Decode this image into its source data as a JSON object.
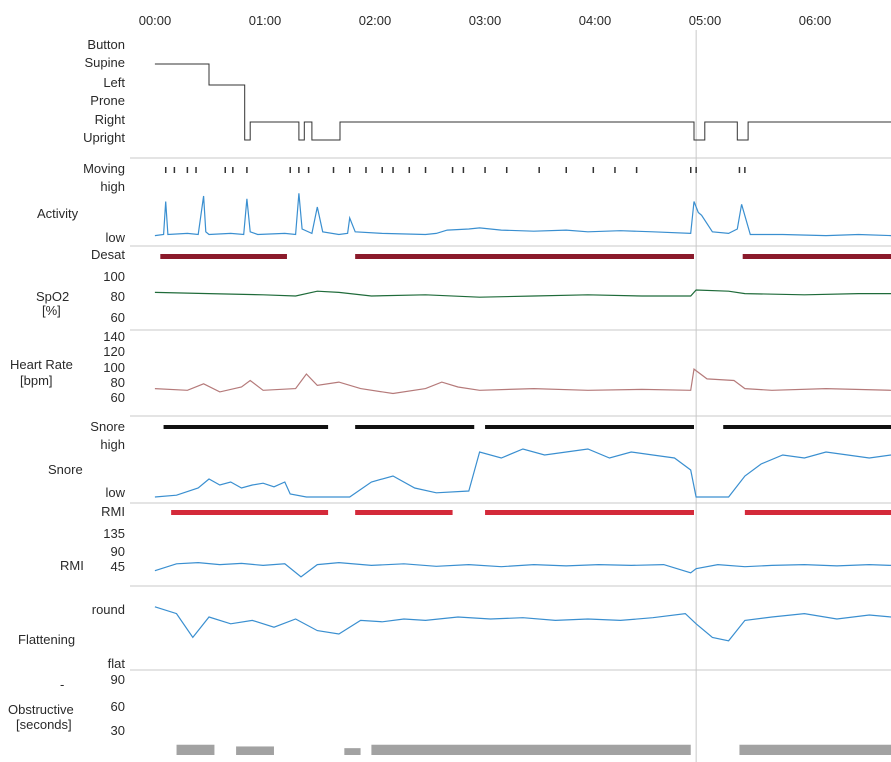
{
  "time_axis": {
    "ticks": [
      "00:00",
      "01:00",
      "02:00",
      "03:00",
      "04:00",
      "05:00",
      "06:00"
    ]
  },
  "panels": {
    "position": {
      "labels": [
        "Button",
        "Supine",
        "Left",
        "Prone",
        "Right",
        "Upright"
      ]
    },
    "moving": {
      "label": "Moving"
    },
    "activity": {
      "title": "Activity",
      "high": "high",
      "low": "low"
    },
    "desat": {
      "label": "Desat"
    },
    "spo2": {
      "title": "SpO2",
      "unit": "[%]",
      "ticks": [
        "100",
        "80",
        "60"
      ]
    },
    "heart_rate": {
      "title": "Heart Rate",
      "unit": "[bpm]",
      "ticks": [
        "140",
        "120",
        "100",
        "80",
        "60"
      ]
    },
    "snore_events": {
      "label": "Snore"
    },
    "snore": {
      "title": "Snore",
      "high": "high",
      "low": "low"
    },
    "rmi_events": {
      "label": "RMI"
    },
    "rmi": {
      "title": "RMI",
      "ticks": [
        "135",
        "90",
        "45"
      ]
    },
    "flattening": {
      "title": "Flattening",
      "high": "round",
      "low": "flat"
    },
    "obstructive": {
      "title": "Obstructive",
      "unit": "[seconds]",
      "ticks": [
        "90",
        "60",
        "30"
      ],
      "dash": "-"
    }
  },
  "colors": {
    "activity": "#3a8fd0",
    "desat": "#8b1a2b",
    "spo2": "#1f6b3a",
    "heart_rate": "#b57a7a",
    "snore_marks": "#111111",
    "snore": "#3a8fd0",
    "rmi_marks": "#d42a3a",
    "rmi": "#3a8fd0",
    "flattening": "#3a8fd0",
    "obstructive": "#555555",
    "grid": "#c8c8c8",
    "axis": "#333333"
  },
  "chart_data": {
    "type": "line",
    "x_unit": "hours since 00:00",
    "x_range": [
      0,
      6.8
    ],
    "position": {
      "levels": [
        "Button",
        "Supine",
        "Left",
        "Prone",
        "Right",
        "Upright"
      ],
      "segments": [
        {
          "start": 0.0,
          "end": 0.5,
          "level": "Supine"
        },
        {
          "start": 0.5,
          "end": 0.83,
          "level": "Left"
        },
        {
          "start": 0.83,
          "end": 0.88,
          "level": "Upright"
        },
        {
          "start": 0.88,
          "end": 1.33,
          "level": "Right"
        },
        {
          "start": 1.33,
          "end": 1.38,
          "level": "Upright"
        },
        {
          "start": 1.38,
          "end": 1.45,
          "level": "Right"
        },
        {
          "start": 1.45,
          "end": 1.71,
          "level": "Upright"
        },
        {
          "start": 1.71,
          "end": 4.98,
          "level": "Right"
        },
        {
          "start": 4.98,
          "end": 5.08,
          "level": "Upright"
        },
        {
          "start": 5.08,
          "end": 5.38,
          "level": "Right"
        },
        {
          "start": 5.38,
          "end": 5.48,
          "level": "Upright"
        },
        {
          "start": 5.48,
          "end": 6.8,
          "level": "Right"
        }
      ]
    },
    "moving": [
      0.1,
      0.18,
      0.3,
      0.38,
      0.65,
      0.72,
      0.85,
      1.25,
      1.33,
      1.42,
      1.65,
      1.8,
      1.95,
      2.1,
      2.2,
      2.35,
      2.5,
      2.75,
      2.85,
      3.05,
      3.25,
      3.55,
      3.8,
      4.05,
      4.25,
      4.45,
      4.95,
      5.0,
      5.4,
      5.45
    ],
    "activity": {
      "range": [
        "low",
        "high"
      ],
      "x": [
        0.0,
        0.08,
        0.1,
        0.12,
        0.3,
        0.4,
        0.45,
        0.47,
        0.5,
        0.7,
        0.82,
        0.85,
        0.88,
        0.95,
        1.2,
        1.3,
        1.33,
        1.36,
        1.45,
        1.5,
        1.55,
        1.7,
        1.78,
        1.8,
        1.85,
        2.1,
        2.5,
        2.6,
        2.7,
        2.9,
        3.0,
        3.2,
        3.5,
        3.8,
        4.0,
        4.3,
        4.6,
        4.95,
        4.98,
        5.02,
        5.05,
        5.15,
        5.3,
        5.38,
        5.42,
        5.5,
        5.8,
        6.2,
        6.5,
        6.8
      ],
      "y": [
        0.08,
        0.1,
        0.7,
        0.1,
        0.12,
        0.1,
        0.8,
        0.15,
        0.1,
        0.12,
        0.1,
        0.75,
        0.15,
        0.1,
        0.12,
        0.1,
        0.85,
        0.2,
        0.12,
        0.6,
        0.15,
        0.1,
        0.12,
        0.4,
        0.15,
        0.12,
        0.1,
        0.12,
        0.18,
        0.2,
        0.22,
        0.18,
        0.16,
        0.18,
        0.15,
        0.17,
        0.15,
        0.12,
        0.7,
        0.5,
        0.45,
        0.15,
        0.12,
        0.2,
        0.65,
        0.1,
        0.1,
        0.08,
        0.1,
        0.08
      ]
    },
    "desat_events": [
      {
        "start": 0.05,
        "end": 1.22
      },
      {
        "start": 1.85,
        "end": 4.98
      },
      {
        "start": 5.43,
        "end": 6.8
      }
    ],
    "spo2": {
      "ylim": [
        60,
        100
      ],
      "x": [
        0.0,
        0.5,
        1.0,
        1.3,
        1.5,
        1.7,
        2.0,
        2.5,
        3.0,
        3.5,
        4.0,
        4.5,
        4.95,
        5.0,
        5.3,
        5.45,
        6.0,
        6.5,
        6.8
      ],
      "y": [
        83,
        82,
        81,
        80,
        84,
        83,
        80,
        81,
        79,
        80,
        81,
        80,
        80,
        85,
        84,
        82,
        81,
        82,
        82
      ]
    },
    "heart_rate": {
      "ylim": [
        60,
        140
      ],
      "x": [
        0.0,
        0.3,
        0.45,
        0.6,
        0.8,
        0.88,
        1.0,
        1.3,
        1.4,
        1.5,
        1.7,
        1.9,
        2.2,
        2.5,
        2.65,
        2.8,
        3.0,
        3.5,
        4.0,
        4.5,
        4.95,
        4.98,
        5.1,
        5.35,
        5.45,
        5.7,
        6.2,
        6.8
      ],
      "y": [
        74,
        72,
        80,
        70,
        76,
        84,
        72,
        74,
        92,
        78,
        82,
        74,
        68,
        74,
        82,
        76,
        72,
        74,
        72,
        73,
        72,
        98,
        86,
        84,
        74,
        72,
        74,
        72
      ]
    },
    "snore_events": [
      {
        "start": 0.08,
        "end": 1.6
      },
      {
        "start": 1.85,
        "end": 2.95
      },
      {
        "start": 3.05,
        "end": 4.98
      },
      {
        "start": 5.25,
        "end": 6.8
      }
    ],
    "snore": {
      "range": [
        "low",
        "high"
      ],
      "x": [
        0.0,
        0.2,
        0.4,
        0.5,
        0.6,
        0.7,
        0.8,
        0.9,
        1.0,
        1.1,
        1.2,
        1.25,
        1.4,
        1.6,
        1.8,
        2.0,
        2.2,
        2.4,
        2.6,
        2.9,
        3.0,
        3.2,
        3.4,
        3.6,
        3.8,
        4.0,
        4.2,
        4.4,
        4.6,
        4.8,
        4.95,
        5.0,
        5.3,
        5.45,
        5.6,
        5.8,
        6.0,
        6.2,
        6.4,
        6.6,
        6.8
      ],
      "y": [
        0.05,
        0.08,
        0.2,
        0.35,
        0.25,
        0.3,
        0.2,
        0.25,
        0.28,
        0.22,
        0.3,
        0.1,
        0.05,
        0.05,
        0.05,
        0.3,
        0.4,
        0.2,
        0.12,
        0.15,
        0.8,
        0.7,
        0.85,
        0.75,
        0.8,
        0.85,
        0.7,
        0.8,
        0.75,
        0.7,
        0.5,
        0.05,
        0.05,
        0.4,
        0.6,
        0.75,
        0.7,
        0.8,
        0.75,
        0.7,
        0.75
      ]
    },
    "rmi_events": [
      {
        "start": 0.15,
        "end": 1.6
      },
      {
        "start": 1.85,
        "end": 2.75
      },
      {
        "start": 3.05,
        "end": 4.98
      },
      {
        "start": 5.45,
        "end": 6.8
      }
    ],
    "rmi": {
      "ylim": [
        0,
        135
      ],
      "x": [
        0.0,
        0.2,
        0.4,
        0.6,
        0.8,
        1.0,
        1.2,
        1.35,
        1.5,
        1.7,
        2.0,
        2.3,
        2.6,
        2.9,
        3.2,
        3.5,
        3.8,
        4.1,
        4.4,
        4.7,
        4.95,
        5.0,
        5.2,
        5.45,
        5.7,
        6.0,
        6.3,
        6.6,
        6.8
      ],
      "y": [
        35,
        52,
        55,
        50,
        53,
        48,
        52,
        20,
        50,
        55,
        48,
        52,
        46,
        50,
        45,
        50,
        47,
        50,
        48,
        50,
        30,
        40,
        50,
        45,
        48,
        50,
        47,
        50,
        48
      ]
    },
    "flattening": {
      "range": [
        "flat",
        "round"
      ],
      "x": [
        0.0,
        0.2,
        0.35,
        0.5,
        0.7,
        0.9,
        1.1,
        1.3,
        1.5,
        1.7,
        1.9,
        2.1,
        2.3,
        2.5,
        2.8,
        3.1,
        3.4,
        3.7,
        4.0,
        4.3,
        4.6,
        4.9,
        5.0,
        5.15,
        5.3,
        5.45,
        5.7,
        6.0,
        6.3,
        6.6,
        6.8
      ],
      "y": [
        0.9,
        0.8,
        0.45,
        0.75,
        0.65,
        0.7,
        0.6,
        0.72,
        0.55,
        0.5,
        0.7,
        0.68,
        0.72,
        0.7,
        0.75,
        0.72,
        0.74,
        0.7,
        0.72,
        0.7,
        0.74,
        0.8,
        0.65,
        0.45,
        0.4,
        0.7,
        0.75,
        0.8,
        0.72,
        0.78,
        0.75
      ]
    },
    "obstructive": {
      "ylim": [
        0,
        90
      ],
      "events": [
        {
          "start": 0.2,
          "end": 0.55,
          "value": 12
        },
        {
          "start": 0.75,
          "end": 1.1,
          "value": 10
        },
        {
          "start": 1.75,
          "end": 1.9,
          "value": 8
        },
        {
          "start": 2.0,
          "end": 4.95,
          "value": 12
        },
        {
          "start": 5.4,
          "end": 6.8,
          "value": 12
        }
      ]
    }
  }
}
